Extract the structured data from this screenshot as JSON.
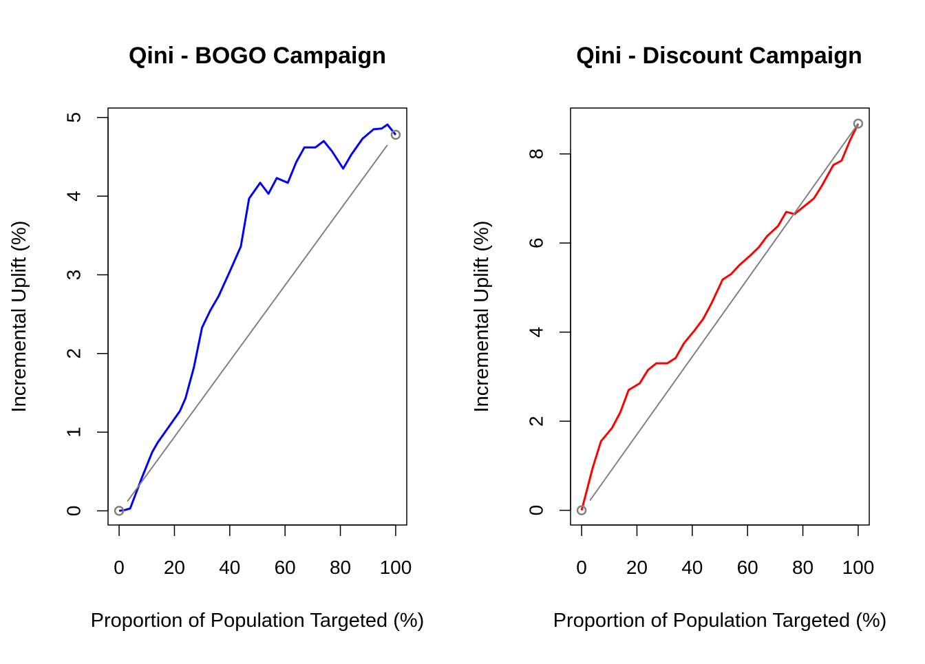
{
  "chart_data": [
    {
      "type": "line",
      "title": "Qini - BOGO Campaign",
      "xlabel": "Proportion of Population Targeted (%)",
      "ylabel": "Incremental Uplift (%)",
      "xlim": [
        -4,
        104
      ],
      "ylim": [
        -0.18,
        5.12
      ],
      "xticks": [
        0,
        20,
        40,
        60,
        80,
        100
      ],
      "yticks": [
        0,
        1,
        2,
        3,
        4,
        5
      ],
      "grid": false,
      "series": [
        {
          "color": "#0000ff",
          "x": [
            0,
            2,
            4,
            8,
            12,
            14,
            18,
            22,
            24,
            27,
            30,
            33,
            36,
            40,
            44,
            47,
            51,
            54,
            57,
            61,
            64,
            67,
            71,
            74,
            77,
            81,
            84,
            88,
            92,
            95,
            97,
            100
          ],
          "y": [
            0,
            0.01,
            0.03,
            0.4,
            0.75,
            0.87,
            1.07,
            1.27,
            1.43,
            1.82,
            2.33,
            2.55,
            2.73,
            3.04,
            3.36,
            3.97,
            4.17,
            4.03,
            4.23,
            4.17,
            4.43,
            4.62,
            4.62,
            4.7,
            4.57,
            4.35,
            4.53,
            4.73,
            4.85,
            4.86,
            4.91,
            4.78
          ]
        },
        {
          "color": "#808080",
          "x": [
            3,
            97
          ],
          "y": [
            0.12,
            4.65
          ]
        }
      ],
      "endpoints": [
        {
          "x": 0,
          "y": 0,
          "color": "#808080"
        },
        {
          "x": 100,
          "y": 4.78,
          "color": "#808080"
        }
      ]
    },
    {
      "type": "line",
      "title": "Qini - Discount Campaign",
      "xlabel": "Proportion of Population Targeted (%)",
      "ylabel": "Incremental Uplift (%)",
      "xlim": [
        -4,
        104
      ],
      "ylim": [
        -0.33,
        9.03
      ],
      "xticks": [
        0,
        20,
        40,
        60,
        80,
        100
      ],
      "yticks": [
        0,
        2,
        4,
        6,
        8
      ],
      "grid": false,
      "series": [
        {
          "color": "#ff0000",
          "x": [
            0,
            4,
            7,
            11,
            14,
            17,
            21,
            24,
            27,
            31,
            34,
            37,
            41,
            44,
            47,
            51,
            54,
            57,
            61,
            64,
            67,
            71,
            74,
            77,
            81,
            84,
            87,
            91,
            94,
            97,
            100
          ],
          "y": [
            0,
            0.95,
            1.55,
            1.85,
            2.2,
            2.7,
            2.85,
            3.15,
            3.3,
            3.3,
            3.42,
            3.75,
            4.05,
            4.3,
            4.65,
            5.18,
            5.3,
            5.5,
            5.72,
            5.9,
            6.15,
            6.38,
            6.7,
            6.65,
            6.85,
            7.0,
            7.3,
            7.75,
            7.85,
            8.3,
            8.68
          ]
        },
        {
          "color": "#808080",
          "x": [
            3,
            100
          ],
          "y": [
            0.22,
            8.68
          ]
        }
      ],
      "endpoints": [
        {
          "x": 0,
          "y": 0,
          "color": "#808080"
        },
        {
          "x": 100,
          "y": 8.68,
          "color": "#808080"
        }
      ]
    }
  ]
}
